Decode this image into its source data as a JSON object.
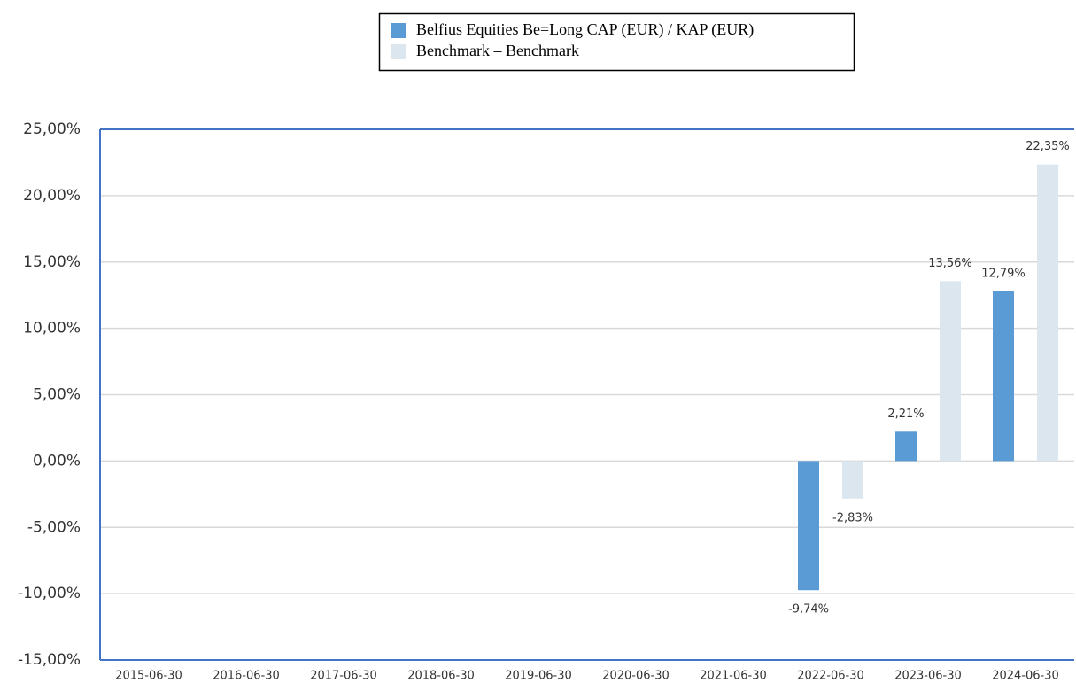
{
  "chart_data": {
    "type": "bar",
    "categories": [
      "2015-06-30",
      "2016-06-30",
      "2017-06-30",
      "2018-06-30",
      "2019-06-30",
      "2020-06-30",
      "2021-06-30",
      "2022-06-30",
      "2023-06-30",
      "2024-06-30"
    ],
    "series": [
      {
        "name": "Belfius Equities Be=Long CAP (EUR) / KAP (EUR)",
        "color": "#5b9bd5",
        "values": [
          null,
          null,
          null,
          null,
          null,
          null,
          null,
          -9.74,
          2.21,
          12.79
        ],
        "value_labels": [
          null,
          null,
          null,
          null,
          null,
          null,
          null,
          "-9,74%",
          "2,21%",
          "12,79%"
        ]
      },
      {
        "name": "Benchmark – Benchmark",
        "color": "#dce6ef",
        "values": [
          null,
          null,
          null,
          null,
          null,
          null,
          null,
          -2.83,
          13.56,
          22.35
        ],
        "value_labels": [
          null,
          null,
          null,
          null,
          null,
          null,
          null,
          "-2,83%",
          "13,56%",
          "22,35%"
        ]
      }
    ],
    "ylim": [
      -15,
      25
    ],
    "yticks": [
      {
        "value": -15,
        "label": "-15,00%"
      },
      {
        "value": -10,
        "label": "-10,00%"
      },
      {
        "value": -5,
        "label": "-5,00%"
      },
      {
        "value": 0,
        "label": "0,00%"
      },
      {
        "value": 5,
        "label": "5,00%"
      },
      {
        "value": 10,
        "label": "10,00%"
      },
      {
        "value": 15,
        "label": "15,00%"
      },
      {
        "value": 20,
        "label": "20,00%"
      },
      {
        "value": 25,
        "label": "25,00%"
      }
    ],
    "grid": true
  }
}
